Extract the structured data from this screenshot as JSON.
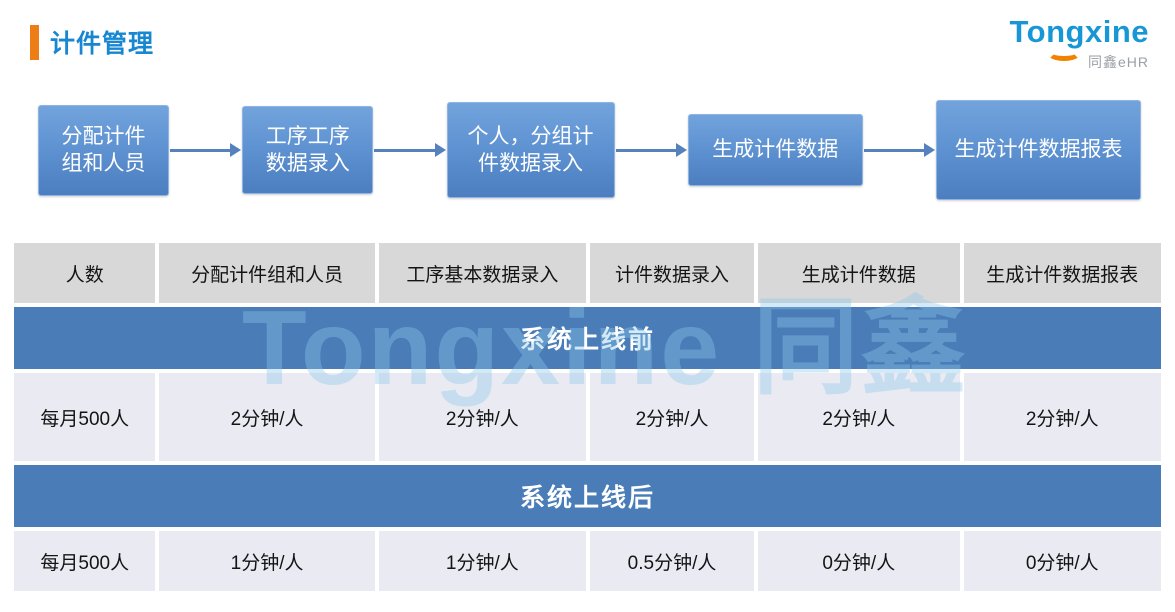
{
  "page": {
    "title": "计件管理",
    "logo": {
      "brand": "Tongxine",
      "sub": "同鑫eHR"
    },
    "watermark": "Tongxine 同鑫"
  },
  "flow": {
    "steps": [
      {
        "label": "分配计件组和人员",
        "line1": "分配计件",
        "line2": "组和人员"
      },
      {
        "label": "工序工序数据录入",
        "line1": "工序工序",
        "line2": "数据录入"
      },
      {
        "label": "个人，分组计件数据录入",
        "line1": "个人，分组计",
        "line2": "件数据录入"
      },
      {
        "label": "生成计件数据",
        "line1": "生成计件数据",
        "line2": ""
      },
      {
        "label": "生成计件数据报表",
        "line1": "生成计件数据报表",
        "line2": ""
      }
    ]
  },
  "table": {
    "headers": [
      "人数",
      "分配计件组和人员",
      "工序基本数据录入",
      "计件数据录入",
      "生成计件数据",
      "生成计件数据报表"
    ],
    "sections": [
      {
        "banner": "系统上线前",
        "row": [
          "每月500人",
          "2分钟/人",
          "2分钟/人",
          "2分钟/人",
          "2分钟/人",
          "2分钟/人"
        ]
      },
      {
        "banner": "系统上线后",
        "row": [
          "每月500人",
          "1分钟/人",
          "1分钟/人",
          "0.5分钟/人",
          "0分钟/人",
          "0分钟/人"
        ]
      }
    ]
  },
  "colors": {
    "title_blue": "#1787D2",
    "accent_orange": "#ED7D16",
    "logo_blue": "#1897D6",
    "logo_arc_orange": "#F08300",
    "logo_sub_gray": "#9AA0A6",
    "flow_box_top": "#72A3DC",
    "flow_box_bottom": "#4C7EC0",
    "arrow_blue": "#5581BC",
    "header_gray": "#D8D8D8",
    "banner_blue": "#4A7CB8",
    "row_lavender": "#E9EAF2",
    "watermark_blue": "#8CC7E8"
  }
}
